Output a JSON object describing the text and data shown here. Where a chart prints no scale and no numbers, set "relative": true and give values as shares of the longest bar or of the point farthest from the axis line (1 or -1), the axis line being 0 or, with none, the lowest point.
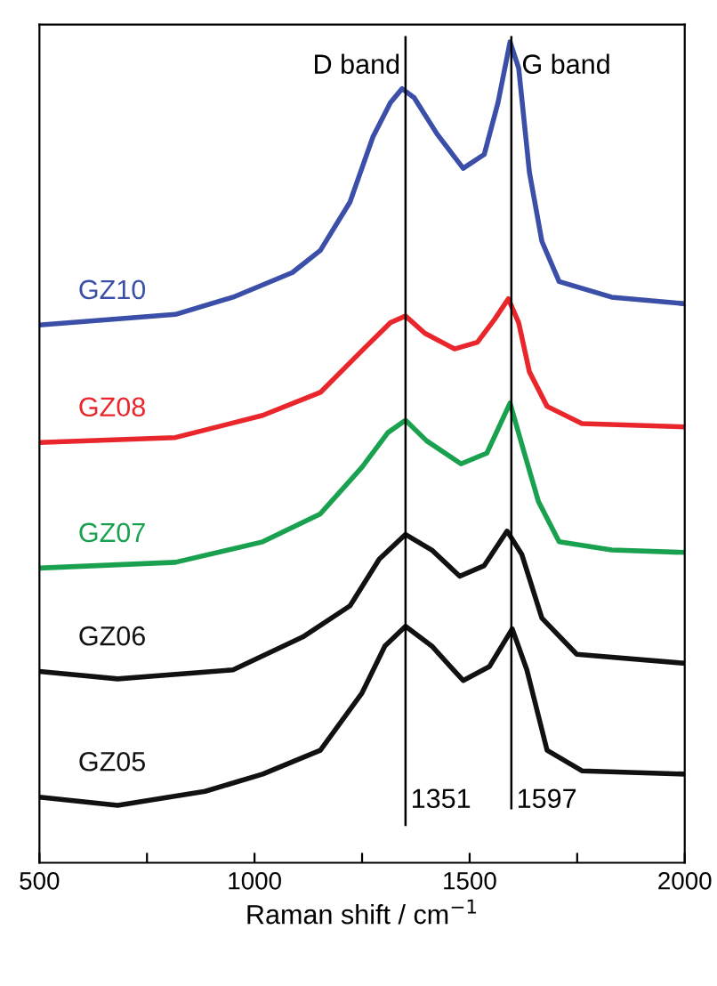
{
  "chart_data": {
    "type": "line",
    "relative": true,
    "xlabel": "Raman shift / cm$^{−1}$",
    "xlim": [
      500,
      2000
    ],
    "xticks": [
      500,
      {
        "value": 750,
        "label": null
      },
      1000,
      {
        "value": 1250,
        "label": null
      },
      1500,
      {
        "value": 1750,
        "label": null
      },
      2000
    ],
    "grid": false,
    "legend": false,
    "marker": "none",
    "line_style": "solid",
    "series": [
      {
        "name": "GZ10",
        "color": "#3b4fa8",
        "x": [
          500,
          816,
          950,
          1088,
          1153,
          1222,
          1275,
          1316,
          1343,
          1371,
          1424,
          1485,
          1534,
          1566,
          1594,
          1614,
          1639,
          1668,
          1708,
          1830,
          2000
        ],
        "values": [
          0.655,
          0.668,
          0.689,
          0.719,
          0.746,
          0.805,
          0.884,
          0.926,
          0.943,
          0.932,
          0.888,
          0.846,
          0.863,
          0.926,
          1,
          0.968,
          0.841,
          0.757,
          0.708,
          0.689,
          0.681
        ]
      },
      {
        "name": "GZ08",
        "color": "#e8262c",
        "x": [
          500,
          816,
          1019,
          1153,
          1250,
          1316,
          1351,
          1396,
          1465,
          1518,
          1558,
          1590,
          1614,
          1639,
          1680,
          1761,
          2000
        ],
        "values": [
          0.512,
          0.518,
          0.545,
          0.573,
          0.624,
          0.658,
          0.666,
          0.645,
          0.626,
          0.634,
          0.662,
          0.687,
          0.658,
          0.598,
          0.556,
          0.535,
          0.531
        ]
      },
      {
        "name": "GZ07",
        "color": "#1aa150",
        "x": [
          500,
          816,
          1019,
          1153,
          1250,
          1310,
          1351,
          1400,
          1480,
          1540,
          1594,
          1625,
          1660,
          1708,
          1830,
          2000
        ],
        "values": [
          0.359,
          0.366,
          0.391,
          0.425,
          0.482,
          0.524,
          0.539,
          0.514,
          0.486,
          0.499,
          0.56,
          0.503,
          0.44,
          0.391,
          0.381,
          0.378
        ]
      },
      {
        "name": "GZ06",
        "color": "#111111",
        "x": [
          500,
          682,
          950,
          1112,
          1222,
          1290,
          1351,
          1412,
          1477,
          1534,
          1587,
          1621,
          1668,
          1749,
          2000
        ],
        "values": [
          0.233,
          0.224,
          0.235,
          0.275,
          0.313,
          0.37,
          0.4,
          0.381,
          0.349,
          0.362,
          0.404,
          0.376,
          0.298,
          0.254,
          0.243
        ]
      },
      {
        "name": "GZ05",
        "color": "#111111",
        "x": [
          500,
          682,
          885,
          1019,
          1153,
          1250,
          1303,
          1351,
          1412,
          1485,
          1546,
          1599,
          1633,
          1680,
          1761,
          2000
        ],
        "values": [
          0.08,
          0.07,
          0.087,
          0.108,
          0.137,
          0.207,
          0.264,
          0.288,
          0.264,
          0.222,
          0.239,
          0.285,
          0.235,
          0.137,
          0.112,
          0.108
        ]
      }
    ],
    "ref_lines": [
      {
        "axis": "x",
        "value": 1351,
        "label": "1351",
        "color": "#000000",
        "line_style": "solid"
      },
      {
        "axis": "x",
        "value": 1597,
        "label": "1597",
        "color": "#000000",
        "line_style": "solid"
      }
    ],
    "annotations": [
      {
        "text": "D band",
        "x": 1351,
        "y": 0.97
      },
      {
        "text": "G band",
        "x": 1597,
        "y": 0.97
      }
    ]
  }
}
